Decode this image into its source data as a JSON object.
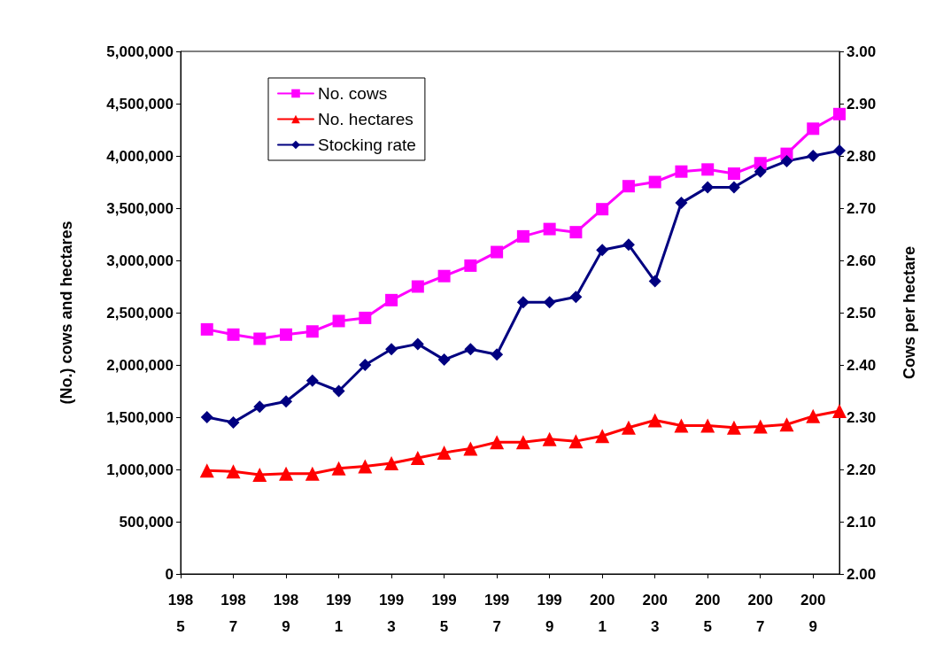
{
  "chart_data": {
    "type": "line",
    "ylabel": "(No.) cows and hectares",
    "y2label": "Cows per hectare",
    "x": [
      1986,
      1987,
      1988,
      1989,
      1990,
      1991,
      1992,
      1993,
      1994,
      1995,
      1996,
      1997,
      1998,
      1999,
      2000,
      2001,
      2002,
      2003,
      2004,
      2005,
      2006,
      2007,
      2008,
      2009,
      2010
    ],
    "series": [
      {
        "name": "No. cows",
        "color": "#ff00ff",
        "marker": "square",
        "values": [
          2340000,
          2290000,
          2250000,
          2290000,
          2320000,
          2420000,
          2450000,
          2620000,
          2750000,
          2850000,
          2950000,
          3080000,
          3230000,
          3300000,
          3270000,
          3490000,
          3710000,
          3750000,
          3850000,
          3870000,
          3830000,
          3930000,
          4020000,
          4260000,
          4400000
        ]
      },
      {
        "name": "No. hectares",
        "color": "#ff0000",
        "marker": "triangle",
        "values": [
          990000,
          980000,
          950000,
          960000,
          960000,
          1010000,
          1030000,
          1060000,
          1110000,
          1160000,
          1200000,
          1260000,
          1260000,
          1290000,
          1270000,
          1320000,
          1400000,
          1470000,
          1420000,
          1420000,
          1400000,
          1410000,
          1430000,
          1510000,
          1560000
        ]
      },
      {
        "name": "Stocking rate",
        "color": "#000080",
        "marker": "diamond",
        "axis": "y2",
        "values": [
          2.3,
          2.29,
          2.32,
          2.33,
          2.37,
          2.35,
          2.4,
          2.43,
          2.44,
          2.41,
          2.43,
          2.42,
          2.52,
          2.52,
          2.53,
          2.62,
          2.63,
          2.56,
          2.71,
          2.74,
          2.74,
          2.77,
          2.79,
          2.8,
          2.81
        ]
      }
    ],
    "xlim": [
      1985,
      2010
    ],
    "xticks": [
      1985,
      1987,
      1989,
      1991,
      1993,
      1995,
      1997,
      1999,
      2001,
      2003,
      2005,
      2007,
      2009
    ],
    "ylim": [
      0,
      5000000
    ],
    "yticks": [
      0,
      {
        "value": 500000,
        "label": "500,000"
      },
      {
        "value": 1000000,
        "label": "1,000,000"
      },
      {
        "value": 1500000,
        "label": "1,500,000"
      },
      {
        "value": 2000000,
        "label": "2,000,000"
      },
      {
        "value": 2500000,
        "label": "2,500,000"
      },
      {
        "value": 3000000,
        "label": "3,000,000"
      },
      {
        "value": 3500000,
        "label": "3,500,000"
      },
      {
        "value": 4000000,
        "label": "4,000,000"
      },
      {
        "value": 4500000,
        "label": "4,500,000"
      },
      {
        "value": 5000000,
        "label": "5,000,000"
      }
    ],
    "y2lim": [
      2.0,
      3.0
    ],
    "y2ticks": [
      {
        "value": 2.0,
        "label": "2.00"
      },
      {
        "value": 2.1,
        "label": "2.10"
      },
      {
        "value": 2.2,
        "label": "2.20"
      },
      {
        "value": 2.3,
        "label": "2.30"
      },
      {
        "value": 2.4,
        "label": "2.40"
      },
      {
        "value": 2.5,
        "label": "2.50"
      },
      {
        "value": 2.6,
        "label": "2.60"
      },
      {
        "value": 2.7,
        "label": "2.70"
      },
      {
        "value": 2.8,
        "label": "2.80"
      },
      {
        "value": 2.9,
        "label": "2.90"
      },
      {
        "value": 3.0,
        "label": "3.00"
      }
    ],
    "legend": "top left",
    "grid": false
  }
}
